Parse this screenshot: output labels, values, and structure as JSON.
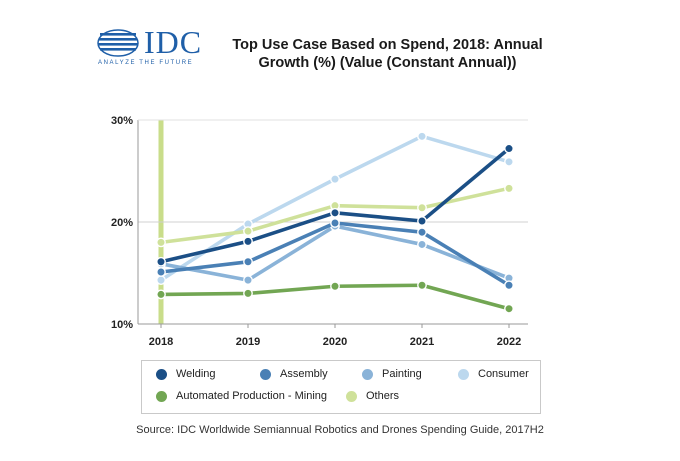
{
  "logo": {
    "wordmark": "IDC",
    "tagline": "ANALYZE THE FUTURE",
    "color": "#1f5fa8"
  },
  "title": "Top Use Case Based on Spend, 2018: Annual Growth (%) (Value (Constant Annual))",
  "source": "Source: IDC Worldwide Semiannual Robotics and Drones Spending Guide, 2017H2",
  "chart_data": {
    "type": "line",
    "title": "Top Use Case Based on Spend, 2018: Annual Growth (%) (Value (Constant Annual))",
    "xlabel": "",
    "ylabel": "",
    "categories": [
      "2018",
      "2019",
      "2020",
      "2021",
      "2022"
    ],
    "ylim": [
      10,
      30
    ],
    "yticks": [
      10,
      20,
      30
    ],
    "ytick_labels": [
      "10%",
      "20%",
      "30%"
    ],
    "grid": "horizontal at 20%",
    "legend_position": "bottom",
    "highlight_category": "2018",
    "highlight_color": "#c9dd8a",
    "series": [
      {
        "name": "Welding",
        "color": "#1b4f86",
        "values": [
          16.1,
          18.1,
          20.9,
          20.1,
          27.2
        ]
      },
      {
        "name": "Assembly",
        "color": "#4a80b5",
        "values": [
          15.1,
          16.1,
          19.9,
          19.0,
          13.8
        ]
      },
      {
        "name": "Painting",
        "color": "#8ab3d8",
        "values": [
          15.9,
          14.3,
          19.6,
          17.8,
          14.5
        ]
      },
      {
        "name": "Consumer",
        "color": "#bcd8ee",
        "values": [
          14.3,
          19.8,
          24.2,
          28.4,
          25.9
        ]
      },
      {
        "name": "Automated Production - Mining",
        "color": "#72a653",
        "values": [
          12.9,
          13.0,
          13.7,
          13.8,
          11.5
        ]
      },
      {
        "name": "Others",
        "color": "#cfe19a",
        "values": [
          18.0,
          19.1,
          21.6,
          21.4,
          23.3
        ]
      }
    ]
  }
}
